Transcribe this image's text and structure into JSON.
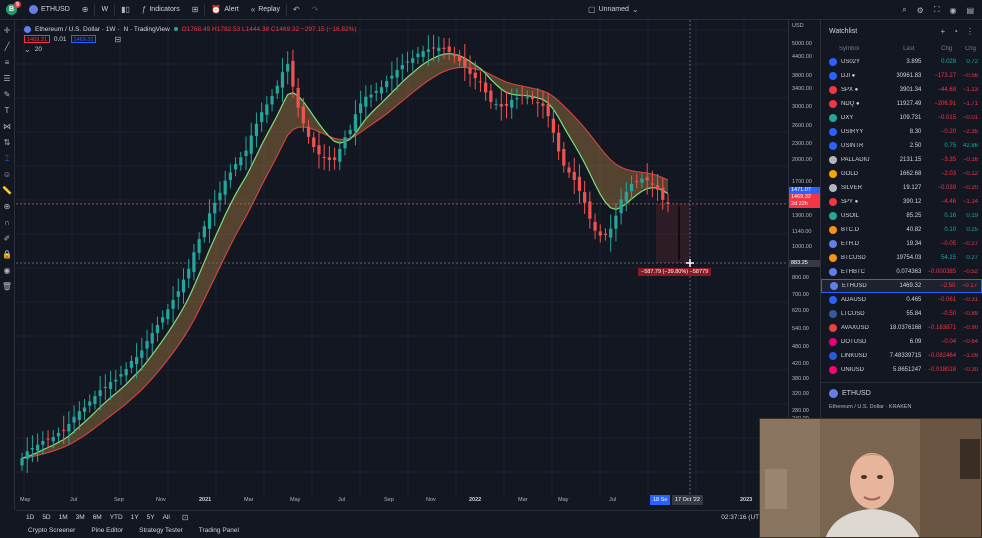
{
  "toolbar": {
    "symbol": "ETHUSD",
    "interval": "W",
    "indicators_label": "Indicators",
    "alert_label": "Alert",
    "replay_label": "Replay",
    "layout_name": "Unnamed",
    "logo_badge": "9"
  },
  "legend": {
    "title": "Ethereum / U.S. Dollar · 1W · ",
    "source": "N · TradingView",
    "ohlc": "O1768.49 H1782.53 L1444.38 C1469.32 −297.15 (−16.82%)",
    "sell_price": "1469.31",
    "spread": "0.01",
    "buy_price": "1469.32",
    "indicator_length": "20"
  },
  "price_axis": {
    "currency": "USD",
    "labels": [
      "5000.00",
      "4400.00",
      "3800.00",
      "3400.00",
      "3000.00",
      "2600.00",
      "2300.00",
      "2000.00",
      "1700.00",
      "1300.00",
      "1140.00",
      "1000.00",
      "800.00",
      "700.00",
      "620.00",
      "540.00",
      "480.00",
      "420.00",
      "380.00",
      "320.00",
      "280.00",
      "240.00"
    ],
    "tag_top": "1471.07",
    "tag_last": "1469.32",
    "tag_countdown": "2d 22h",
    "tag_cross": "883.25"
  },
  "measure_label": "−587.79 (−39.80%) −58779",
  "time_axis": {
    "labels": [
      "May",
      "Jul",
      "Sep",
      "Nov",
      "2021",
      "Mar",
      "May",
      "Jul",
      "Sep",
      "Nov",
      "2022",
      "Mar",
      "May",
      "Jul",
      "2023"
    ],
    "tag_start": "18 Se",
    "tag_end": "17 Oct '22"
  },
  "ranges": [
    "1D",
    "5D",
    "1M",
    "3M",
    "6M",
    "YTD",
    "1Y",
    "5Y",
    "All"
  ],
  "clock": "02:37:16 (UTC)",
  "panel_tabs": [
    "Crypto Screener",
    "Pine Editor",
    "Strategy Tester",
    "Trading Panel"
  ],
  "watchlist": {
    "title": "Watchlist",
    "columns": {
      "symbol": "Symbol",
      "last": "Last",
      "chg": "Chg",
      "chgp": "Chg"
    },
    "rows": [
      {
        "symbol": "US02Y",
        "last": "3.895",
        "chg": "0.028",
        "chgp": "0.72",
        "dir": "pos",
        "color": "#2962ff"
      },
      {
        "symbol": "DJI ●",
        "last": "30961.83",
        "chg": "−173.27",
        "chgp": "−0.56",
        "dir": "neg",
        "color": "#2962ff"
      },
      {
        "symbol": "SPX ●",
        "last": "3901.34",
        "chg": "−44.68",
        "chgp": "−1.13",
        "dir": "neg",
        "color": "#f23645"
      },
      {
        "symbol": "NDQ ●",
        "last": "11927.49",
        "chg": "−206.91",
        "chgp": "−1.71",
        "dir": "neg",
        "color": "#f23645"
      },
      {
        "symbol": "DXY",
        "last": "109.731",
        "chg": "−0.015",
        "chgp": "−0.01",
        "dir": "neg",
        "color": "#26a69a"
      },
      {
        "symbol": "USIRYY",
        "last": "8.30",
        "chg": "−0.20",
        "chgp": "−2.35",
        "dir": "neg",
        "color": "#2962ff"
      },
      {
        "symbol": "USINTR",
        "last": "2.50",
        "chg": "0.75",
        "chgp": "42.86",
        "dir": "pos",
        "color": "#2962ff"
      },
      {
        "symbol": "PALLADIU",
        "last": "2131.15",
        "chg": "−3.35",
        "chgp": "−0.16",
        "dir": "neg",
        "color": "#b2b5be"
      },
      {
        "symbol": "GOLD",
        "last": "1662.68",
        "chg": "−2.03",
        "chgp": "−0.12",
        "dir": "neg",
        "color": "#f7a600"
      },
      {
        "symbol": "SILVER",
        "last": "19.127",
        "chg": "−0.039",
        "chgp": "−0.20",
        "dir": "neg",
        "color": "#b2b5be"
      },
      {
        "symbol": "SPY ●",
        "last": "390.12",
        "chg": "−4.46",
        "chgp": "−1.14",
        "dir": "neg",
        "color": "#f23645"
      },
      {
        "symbol": "USOIL",
        "last": "85.25",
        "chg": "0.16",
        "chgp": "0.19",
        "dir": "pos",
        "color": "#26a69a"
      },
      {
        "symbol": "BTC.D",
        "last": "40.82",
        "chg": "0.10",
        "chgp": "0.25",
        "dir": "pos",
        "color": "#f7931a"
      },
      {
        "symbol": "ETH.D",
        "last": "19.34",
        "chg": "−0.05",
        "chgp": "−0.27",
        "dir": "neg",
        "color": "#627eea"
      },
      {
        "symbol": "BTCUSD",
        "last": "19754.03",
        "chg": "54.15",
        "chgp": "0.27",
        "dir": "pos",
        "color": "#f7931a"
      },
      {
        "symbol": "ETHBTC",
        "last": "0.074363",
        "chg": "−0.000385",
        "chgp": "−0.52",
        "dir": "neg",
        "color": "#627eea"
      },
      {
        "symbol": "ETHUSD",
        "last": "1469.32",
        "chg": "−2.50",
        "chgp": "−0.17",
        "dir": "neg",
        "color": "#627eea",
        "active": true
      },
      {
        "symbol": "ADAUSD",
        "last": "0.465",
        "chg": "−0.061",
        "chgp": "−0.31",
        "dir": "neg",
        "color": "#2962ff"
      },
      {
        "symbol": "LTCUSD",
        "last": "55.84",
        "chg": "−0.50",
        "chgp": "−0.89",
        "dir": "neg",
        "color": "#345d9d"
      },
      {
        "symbol": "AVAXUSD",
        "last": "18.0376168",
        "chg": "−0.163871",
        "chgp": "−0.90",
        "dir": "neg",
        "color": "#e84142"
      },
      {
        "symbol": "DOTUSD",
        "last": "6.09",
        "chg": "−0.04",
        "chgp": "−0.64",
        "dir": "neg",
        "color": "#e6007a"
      },
      {
        "symbol": "LINKUSD",
        "last": "7.48339715",
        "chg": "−0.082464",
        "chgp": "−1.09",
        "dir": "neg",
        "color": "#2a5ada"
      },
      {
        "symbol": "UNIUSD",
        "last": "5.8651247",
        "chg": "−0.018018",
        "chgp": "−0.30",
        "dir": "neg",
        "color": "#ff007a"
      }
    ],
    "detail": {
      "symbol": "ETHUSD",
      "subtitle": "Ethereum / U.S. Dollar · KRAKEN"
    }
  },
  "chart_data": {
    "type": "candlestick",
    "symbol": "ETHUSD",
    "interval": "1W",
    "scale": "log",
    "close": [
      236,
      248,
      254,
      260,
      267,
      270,
      275,
      283,
      289,
      302,
      318,
      331,
      340,
      355,
      369,
      385,
      394,
      408,
      415,
      432,
      448,
      475,
      488,
      512,
      548,
      580,
      615,
      650,
      688,
      736,
      784,
      852,
      921,
      1037,
      1140,
      1251,
      1372,
      1480,
      1591,
      1735,
      1840,
      1957,
      2053,
      2154,
      2401,
      2611,
      2838,
      3002,
      3189,
      3433,
      3785,
      4013,
      3412,
      2934,
      2620,
      2378,
      2210,
      2096,
      2052,
      2014,
      2015,
      2180,
      2371,
      2498,
      2798,
      3021,
      3173,
      3219,
      3308,
      3398,
      3552,
      3691,
      3845,
      3983,
      4084,
      4183,
      4322,
      4402,
      4459,
      4487,
      4513,
      4474,
      4378,
      4243,
      4099,
      3933,
      3741,
      3628,
      3528,
      3271,
      3057,
      3008,
      2957,
      2974,
      3101,
      3139,
      3186,
      3158,
      3122,
      3037,
      2971,
      2759,
      2450,
      2141,
      1934,
      1840,
      1745,
      1613,
      1481,
      1320,
      1211,
      1169,
      1174,
      1229,
      1349,
      1516,
      1602,
      1694,
      1727,
      1762,
      1740,
      1687,
      1627,
      1512,
      1469
    ],
    "ma_fast_length": 20,
    "price_range": [
      220,
      5200
    ]
  }
}
